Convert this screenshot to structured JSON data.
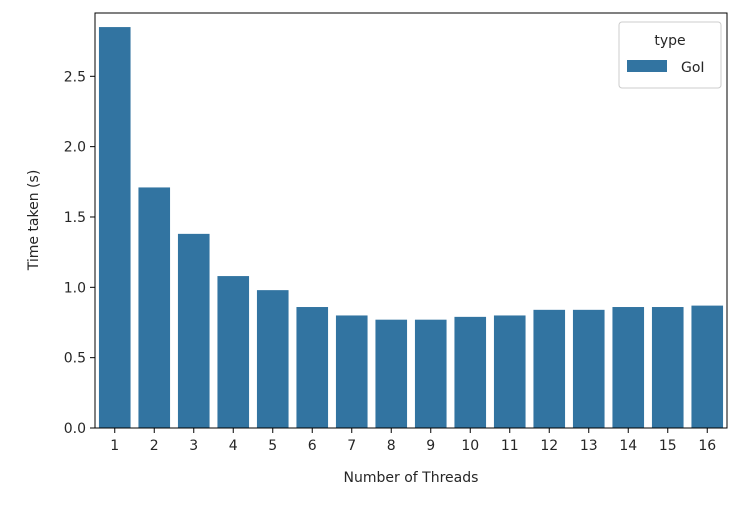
{
  "chart_data": {
    "type": "bar",
    "title": "",
    "xlabel": "Number of Threads",
    "ylabel": "Time taken (s)",
    "categories": [
      "1",
      "2",
      "3",
      "4",
      "5",
      "6",
      "7",
      "8",
      "9",
      "10",
      "11",
      "12",
      "13",
      "14",
      "15",
      "16"
    ],
    "series": [
      {
        "name": "GoI",
        "color": "#3274a1",
        "values": [
          2.85,
          1.71,
          1.38,
          1.08,
          0.98,
          0.86,
          0.8,
          0.77,
          0.77,
          0.79,
          0.8,
          0.84,
          0.84,
          0.86,
          0.86,
          0.87
        ]
      }
    ],
    "ylim": [
      0,
      2.95
    ],
    "yticks": [
      0.0,
      0.5,
      1.0,
      1.5,
      2.0,
      2.5
    ],
    "ytick_labels": [
      "0.0",
      "0.5",
      "1.0",
      "1.5",
      "2.0",
      "2.5"
    ],
    "grid": false,
    "legend": {
      "title": "type",
      "placement": "top-right"
    }
  }
}
